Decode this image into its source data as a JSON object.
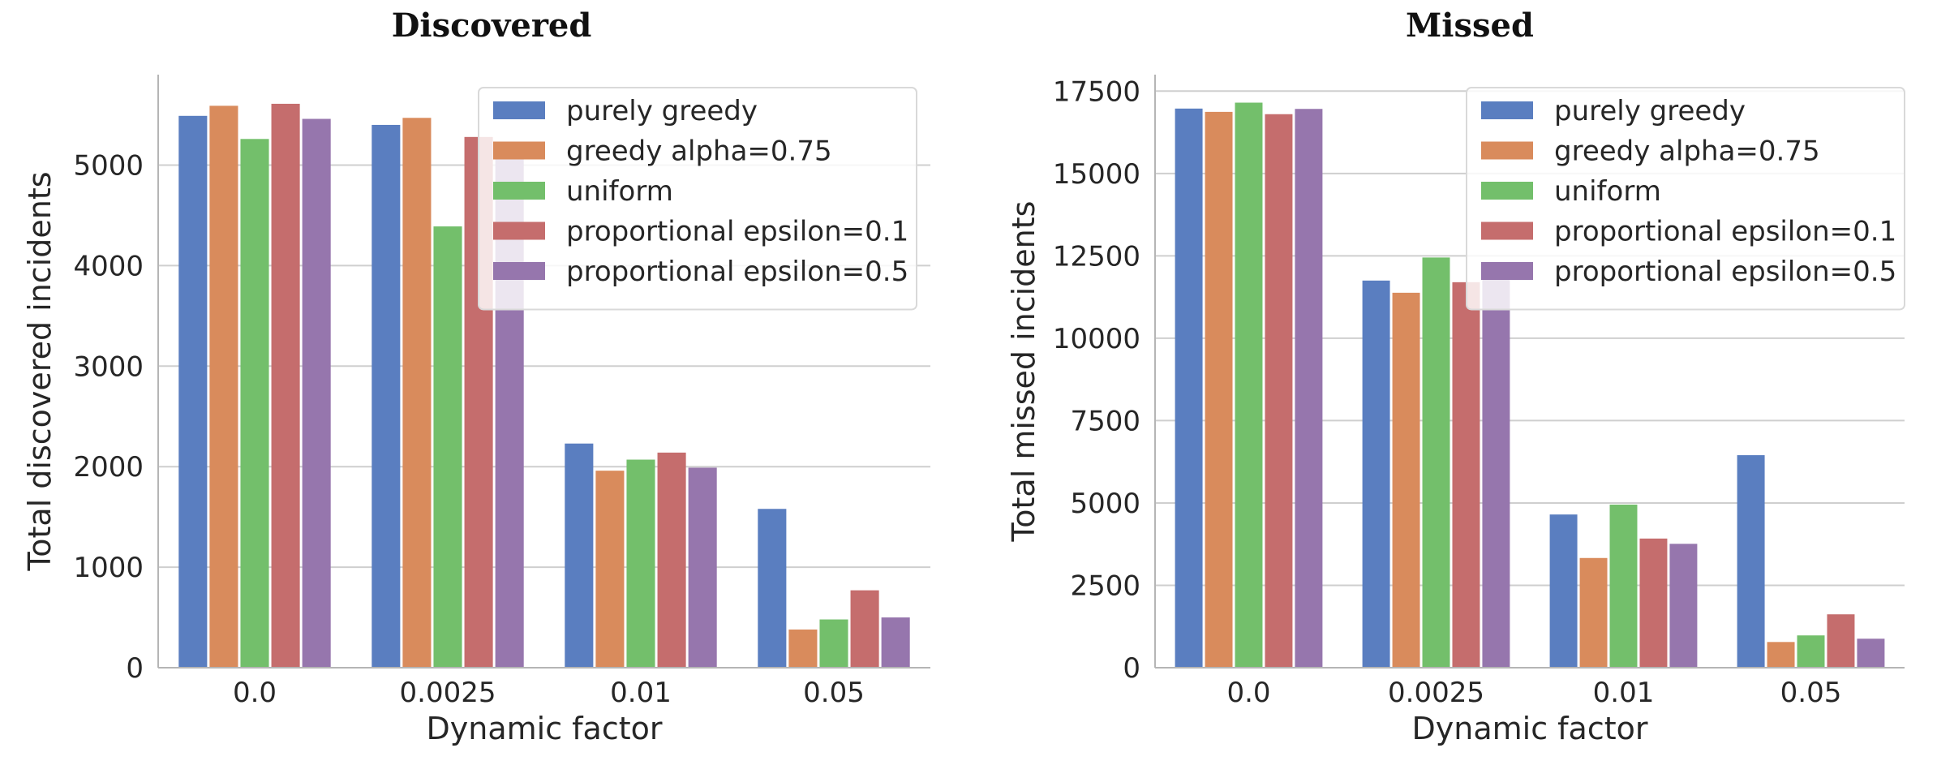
{
  "palette": {
    "series_colors": [
      "#5a7ec0",
      "#d98b5c",
      "#73bf6b",
      "#c56d6d",
      "#9676ad"
    ],
    "grid": "#cfcfcf",
    "axis": "#b5b5b5",
    "legend_border": "#d9d9d9"
  },
  "chart_data": [
    {
      "type": "bar",
      "title": "Discovered",
      "xlabel": "Dynamic factor",
      "ylabel": "Total discovered incidents",
      "categories": [
        "0.0",
        "0.0025",
        "0.01",
        "0.05"
      ],
      "ylim": [
        0,
        5900
      ],
      "yticks": [
        0,
        1000,
        2000,
        3000,
        4000,
        5000
      ],
      "grid": true,
      "legend_position": "top-right",
      "series": [
        {
          "name": "purely greedy",
          "values": [
            5490,
            5400,
            2230,
            1580
          ]
        },
        {
          "name": "greedy alpha=0.75",
          "values": [
            5590,
            5470,
            1960,
            380
          ]
        },
        {
          "name": "uniform",
          "values": [
            5260,
            4390,
            2070,
            480
          ]
        },
        {
          "name": "proportional epsilon=0.1",
          "values": [
            5610,
            5280,
            2140,
            770
          ]
        },
        {
          "name": "proportional epsilon=0.5",
          "values": [
            5460,
            5180,
            1990,
            500
          ]
        }
      ]
    },
    {
      "type": "bar",
      "title": "Missed",
      "xlabel": "Dynamic factor",
      "ylabel": "Total missed incidents",
      "categories": [
        "0.0",
        "0.0025",
        "0.01",
        "0.05"
      ],
      "ylim": [
        0,
        18000
      ],
      "yticks": [
        0,
        2500,
        5000,
        7500,
        10000,
        12500,
        15000,
        17500
      ],
      "grid": true,
      "legend_position": "top-right",
      "series": [
        {
          "name": "purely greedy",
          "values": [
            16970,
            11750,
            4650,
            6450
          ]
        },
        {
          "name": "greedy alpha=0.75",
          "values": [
            16870,
            11380,
            3330,
            780
          ]
        },
        {
          "name": "uniform",
          "values": [
            17150,
            12450,
            4950,
            980
          ]
        },
        {
          "name": "proportional epsilon=0.1",
          "values": [
            16800,
            11700,
            3920,
            1620
          ]
        },
        {
          "name": "proportional epsilon=0.5",
          "values": [
            16960,
            11900,
            3760,
            880
          ]
        }
      ]
    }
  ]
}
